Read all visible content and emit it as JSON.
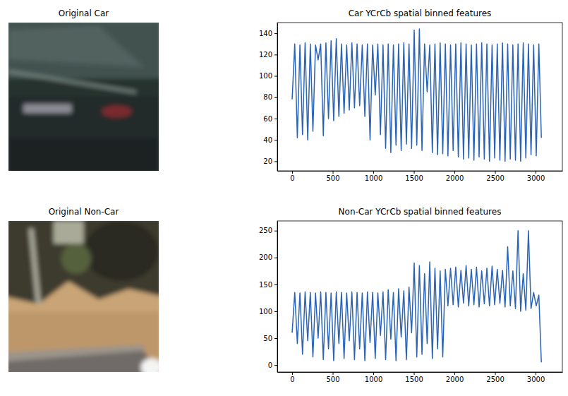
{
  "chart_data": [
    {
      "type": "image",
      "title": "Original Car"
    },
    {
      "type": "line",
      "title": "Car YCrCb spatial binned features",
      "color": "#2b64b4",
      "x": [
        0,
        32,
        64,
        96,
        128,
        160,
        192,
        224,
        256,
        288,
        320,
        352,
        384,
        416,
        448,
        480,
        512,
        544,
        576,
        608,
        640,
        672,
        704,
        736,
        768,
        800,
        832,
        864,
        896,
        928,
        960,
        992,
        1024,
        1056,
        1088,
        1120,
        1152,
        1184,
        1216,
        1248,
        1280,
        1312,
        1344,
        1376,
        1408,
        1440,
        1472,
        1504,
        1536,
        1568,
        1600,
        1632,
        1664,
        1696,
        1728,
        1760,
        1792,
        1824,
        1856,
        1888,
        1920,
        1952,
        1984,
        2016,
        2048,
        2080,
        2112,
        2144,
        2176,
        2208,
        2240,
        2272,
        2304,
        2336,
        2368,
        2400,
        2432,
        2464,
        2496,
        2528,
        2560,
        2592,
        2624,
        2656,
        2688,
        2720,
        2752,
        2784,
        2816,
        2848,
        2880,
        2912,
        2944,
        2976,
        3008,
        3040,
        3071
      ],
      "values": [
        78,
        130,
        42,
        129,
        45,
        131,
        40,
        130,
        48,
        129,
        115,
        130,
        44,
        131,
        60,
        133,
        58,
        135,
        62,
        130,
        65,
        129,
        68,
        131,
        70,
        130,
        72,
        129,
        62,
        130,
        40,
        129,
        82,
        130,
        45,
        129,
        32,
        130,
        28,
        129,
        35,
        130,
        30,
        131,
        36,
        130,
        32,
        143,
        35,
        144,
        30,
        130,
        85,
        129,
        28,
        130,
        26,
        131,
        27,
        130,
        25,
        129,
        30,
        130,
        24,
        131,
        22,
        130,
        23,
        129,
        21,
        130,
        24,
        131,
        22,
        130,
        20,
        129,
        23,
        130,
        21,
        131,
        20,
        130,
        22,
        129,
        21,
        130,
        20,
        131,
        23,
        130,
        26,
        129,
        25,
        130,
        42
      ],
      "xlim": [
        -183,
        3330
      ],
      "ylim": [
        11,
        150
      ],
      "xticks": [
        0,
        500,
        1000,
        1500,
        2000,
        2500,
        3000
      ],
      "yticks": [
        20,
        40,
        60,
        80,
        100,
        120,
        140
      ]
    },
    {
      "type": "image",
      "title": "Original Non-Car"
    },
    {
      "type": "line",
      "title": "Non-Car YCrCb spatial binned features",
      "color": "#2b64b4",
      "x": [
        0,
        32,
        64,
        96,
        128,
        160,
        192,
        224,
        256,
        288,
        320,
        352,
        384,
        416,
        448,
        480,
        512,
        544,
        576,
        608,
        640,
        672,
        704,
        736,
        768,
        800,
        832,
        864,
        896,
        928,
        960,
        992,
        1024,
        1056,
        1088,
        1120,
        1152,
        1184,
        1216,
        1248,
        1280,
        1312,
        1344,
        1376,
        1408,
        1440,
        1472,
        1504,
        1536,
        1568,
        1600,
        1632,
        1664,
        1696,
        1728,
        1760,
        1792,
        1824,
        1856,
        1888,
        1920,
        1952,
        1984,
        2016,
        2048,
        2080,
        2112,
        2144,
        2176,
        2208,
        2240,
        2272,
        2304,
        2336,
        2368,
        2400,
        2432,
        2464,
        2496,
        2528,
        2560,
        2592,
        2624,
        2656,
        2688,
        2720,
        2752,
        2784,
        2816,
        2848,
        2880,
        2912,
        2944,
        2976,
        3008,
        3040,
        3071
      ],
      "values": [
        60,
        135,
        40,
        134,
        20,
        136,
        45,
        135,
        15,
        134,
        50,
        136,
        10,
        135,
        30,
        134,
        8,
        136,
        40,
        135,
        12,
        134,
        45,
        136,
        10,
        135,
        30,
        134,
        8,
        136,
        42,
        135,
        12,
        134,
        55,
        136,
        10,
        140,
        48,
        135,
        8,
        142,
        52,
        138,
        10,
        145,
        60,
        190,
        15,
        185,
        20,
        170,
        40,
        192,
        12,
        180,
        30,
        175,
        15,
        178,
        110,
        180,
        112,
        182,
        108,
        176,
        115,
        185,
        110,
        178,
        112,
        182,
        108,
        175,
        114,
        180,
        110,
        184,
        112,
        178,
        115,
        176,
        108,
        220,
        110,
        175,
        105,
        250,
        100,
        170,
        102,
        250,
        105,
        135,
        110,
        130,
        5
      ],
      "xlim": [
        -183,
        3330
      ],
      "ylim": [
        -13,
        268
      ],
      "xticks": [
        0,
        500,
        1000,
        1500,
        2000,
        2500,
        3000
      ],
      "yticks": [
        0,
        50,
        100,
        150,
        200,
        250
      ]
    }
  ]
}
